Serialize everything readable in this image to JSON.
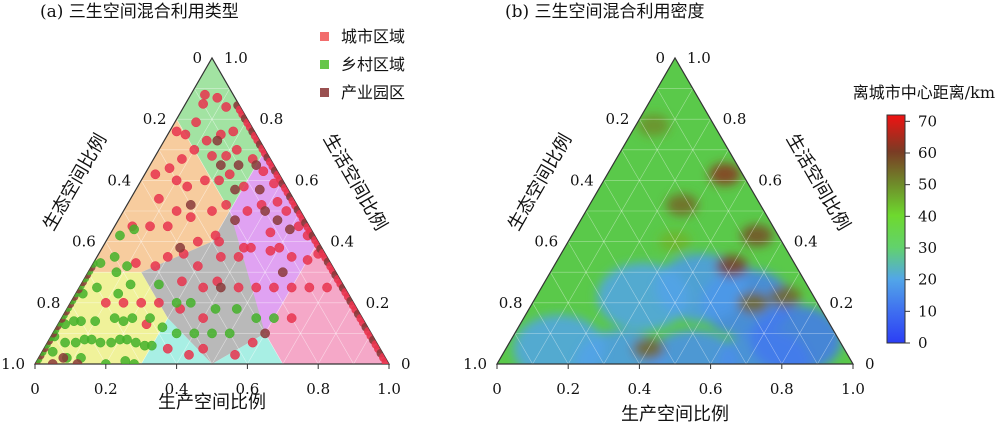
{
  "panel_a": {
    "title": "(a) 三生空间混合利用类型",
    "legend": [
      {
        "label": "城市区域",
        "color": "#f26d6d"
      },
      {
        "label": "乡村区域",
        "color": "#66c64a"
      },
      {
        "label": "产业园区",
        "color": "#9a5050"
      }
    ]
  },
  "panel_b": {
    "title": "(b) 三生空间混合利用密度",
    "colorbar_title": "离城市中心距离/km",
    "colorbar_ticks": [
      "0",
      "10",
      "20",
      "30",
      "40",
      "50",
      "60",
      "70"
    ],
    "colorbar_range": [
      0,
      72
    ]
  },
  "axes": {
    "bottom_label": "生产空间比例",
    "left_label": "生态空间比例",
    "right_label": "生活空间比例",
    "bottom_ticks": [
      "0",
      "0.2",
      "0.4",
      "0.6",
      "0.8",
      "1.0"
    ],
    "left_ticks": [
      "0",
      "0.2",
      "0.4",
      "0.6",
      "0.8",
      "1.0"
    ],
    "right_ticks": [
      "0",
      "0.2",
      "0.4",
      "0.6",
      "0.8",
      "1.0"
    ]
  },
  "chart_data": [
    {
      "type": "scatter",
      "title": "(a) 三生空间混合利用类型",
      "coordinate_system": "ternary (production, ecological, living)",
      "axes": {
        "bottom": "生产空间比例",
        "left": "生态空间比例",
        "right": "生活空间比例",
        "range": [
          0,
          1
        ]
      },
      "region_colors": {
        "living_dominant": "#f5a8c8",
        "ecology_dominant": "#f7cc9e",
        "production_dominant": "#a8efe4",
        "mixed_center": "#b9b9b9",
        "mixed_living_production": "#e0a2f2",
        "ecology_production": "#f0f29a",
        "ecology_living": "#a2e3a2"
      },
      "series": [
        {
          "name": "城市区域",
          "color": "#e8344e",
          "points": [
            [
              0.62,
              0.02
            ],
            [
              0.6,
              0.06
            ],
            [
              0.55,
              0.1
            ],
            [
              0.5,
              0.12
            ],
            [
              0.48,
              0.15
            ],
            [
              0.42,
              0.2
            ],
            [
              0.4,
              0.22
            ],
            [
              0.45,
              0.12
            ],
            [
              0.38,
              0.1
            ],
            [
              0.35,
              0.15
            ],
            [
              0.3,
              0.12
            ],
            [
              0.28,
              0.2
            ],
            [
              0.25,
              0.25
            ],
            [
              0.32,
              0.28
            ],
            [
              0.22,
              0.18
            ],
            [
              0.18,
              0.22
            ],
            [
              0.15,
              0.1
            ],
            [
              0.12,
              0.15
            ],
            [
              0.1,
              0.3
            ],
            [
              0.08,
              0.25
            ],
            [
              0.2,
              0.32
            ],
            [
              0.24,
              0.4
            ],
            [
              0.2,
              0.45
            ],
            [
              0.15,
              0.4
            ],
            [
              0.05,
              0.2
            ],
            [
              0.05,
              0.1
            ],
            [
              0.08,
              0.05
            ],
            [
              0.12,
              0.04
            ],
            [
              0.18,
              0.06
            ],
            [
              0.22,
              0.08
            ],
            [
              0.28,
              0.05
            ],
            [
              0.33,
              0.04
            ],
            [
              0.38,
              0.03
            ],
            [
              0.42,
              0.05
            ],
            [
              0.46,
              0.04
            ],
            [
              0.52,
              0.03
            ],
            [
              0.56,
              0.02
            ],
            [
              0.65,
              0.1
            ],
            [
              0.7,
              0.05
            ],
            [
              0.58,
              0.35
            ],
            [
              0.55,
              0.42
            ],
            [
              0.45,
              0.5
            ],
            [
              0.42,
              0.55
            ],
            [
              0.4,
              0.45
            ],
            [
              0.35,
              0.4
            ],
            [
              0.38,
              0.35
            ],
            [
              0.3,
              0.38
            ],
            [
              0.35,
              0.3
            ],
            [
              0.28,
              0.45
            ],
            [
              0.32,
              0.5
            ],
            [
              0.25,
              0.55
            ],
            [
              0.2,
              0.6
            ],
            [
              0.15,
              0.65
            ],
            [
              0.1,
              0.7
            ],
            [
              0.35,
              0.6
            ],
            [
              0.45,
              0.3
            ],
            [
              0.4,
              0.25
            ],
            [
              0.5,
              0.25
            ],
            [
              0.55,
              0.2
            ],
            [
              0.6,
              0.15
            ],
            [
              0.65,
              0.2
            ],
            [
              0.18,
              0.5
            ],
            [
              0.12,
              0.55
            ],
            [
              0.1,
              0.45
            ],
            [
              0.08,
              0.38
            ],
            [
              0.06,
              0.3
            ],
            [
              0.25,
              0.62
            ],
            [
              0.3,
              0.28
            ],
            [
              0.14,
              0.28
            ],
            [
              0.05,
              0.5
            ],
            [
              0.2,
              0.12
            ],
            [
              0.24,
              0.14
            ],
            [
              0.16,
              0.16
            ],
            [
              0.1,
              0.2
            ],
            [
              0.06,
              0.15
            ],
            [
              0.04,
              0.08
            ],
            [
              0.02,
              0.22
            ],
            [
              0.03,
              0.35
            ],
            [
              0.15,
              0.35
            ],
            [
              0.26,
              0.34
            ]
          ]
        },
        {
          "name": "乡村区域",
          "color": "#44b22a",
          "points": [
            [
              0.03,
              0.93
            ],
            [
              0.05,
              0.88
            ],
            [
              0.08,
              0.85
            ],
            [
              0.1,
              0.82
            ],
            [
              0.12,
              0.8
            ],
            [
              0.15,
              0.78
            ],
            [
              0.02,
              0.85
            ],
            [
              0.06,
              0.8
            ],
            [
              0.1,
              0.76
            ],
            [
              0.18,
              0.75
            ],
            [
              0.2,
              0.72
            ],
            [
              0.22,
              0.7
            ],
            [
              0.25,
              0.68
            ],
            [
              0.28,
              0.66
            ],
            [
              0.3,
              0.64
            ],
            [
              0.15,
              0.7
            ],
            [
              0.12,
              0.65
            ],
            [
              0.08,
              0.62
            ],
            [
              0.05,
              0.7
            ],
            [
              0.02,
              0.75
            ],
            [
              0.35,
              0.55
            ],
            [
              0.4,
              0.5
            ],
            [
              0.45,
              0.45
            ],
            [
              0.5,
              0.4
            ],
            [
              0.25,
              0.6
            ],
            [
              0.3,
              0.58
            ],
            [
              0.2,
              0.65
            ],
            [
              0.05,
              0.6
            ],
            [
              0.02,
              0.65
            ],
            [
              0.03,
              0.55
            ],
            [
              0.06,
              0.5
            ],
            [
              0.1,
              0.58
            ],
            [
              0.14,
              0.6
            ],
            [
              0.18,
              0.68
            ],
            [
              0.22,
              0.52
            ],
            [
              0.34,
              0.46
            ],
            [
              0.42,
              0.4
            ],
            [
              0.48,
              0.34
            ],
            [
              0.3,
              0.5
            ],
            [
              0.55,
              0.3
            ],
            [
              0.6,
              0.25
            ],
            [
              0.2,
              0.8
            ],
            [
              0.25,
              0.74
            ],
            [
              0.28,
              0.72
            ],
            [
              0.08,
              0.9
            ],
            [
              0.04,
              0.82
            ],
            [
              0.01,
              0.9
            ],
            [
              0.12,
              0.86
            ]
          ]
        },
        {
          "name": "产业园区",
          "color": "#8a3a3a",
          "points": [
            [
              0.3,
              0.05
            ],
            [
              0.35,
              0.08
            ],
            [
              0.4,
              0.1
            ],
            [
              0.25,
              0.1
            ],
            [
              0.2,
              0.15
            ],
            [
              0.45,
              0.08
            ],
            [
              0.5,
              0.06
            ],
            [
              0.15,
              0.12
            ],
            [
              0.28,
              0.15
            ],
            [
              0.33,
              0.2
            ],
            [
              0.12,
              0.88
            ],
            [
              0.05,
              0.95
            ],
            [
              0.07,
              0.91
            ],
            [
              0.6,
              0.3
            ],
            [
              0.4,
              0.35
            ],
            [
              0.22,
              0.4
            ],
            [
              0.18,
              0.3
            ],
            [
              0.55,
              0.15
            ]
          ]
        }
      ]
    },
    {
      "type": "heatmap",
      "title": "(b) 三生空间混合利用密度",
      "coordinate_system": "ternary (production, ecological, living)",
      "value_label": "离城市中心距离/km",
      "value_range": [
        0,
        72
      ],
      "base_value": 32,
      "hotspots": [
        {
          "production": 0.5,
          "ecological": 0.18,
          "value": 60
        },
        {
          "production": 0.33,
          "ecological": 0.05,
          "value": 62
        },
        {
          "production": 0.52,
          "ecological": 0.06,
          "value": 58
        },
        {
          "production": 0.7,
          "ecological": 0.08,
          "value": 55
        },
        {
          "production": 0.62,
          "ecological": 0.18,
          "value": 55
        },
        {
          "production": 0.26,
          "ecological": 0.22,
          "value": 55
        },
        {
          "production": 0.05,
          "ecological": 0.17,
          "value": 50
        },
        {
          "production": 0.4,
          "ecological": 0.55,
          "value": 55
        },
        {
          "production": 0.3,
          "ecological": 0.3,
          "value": 45
        }
      ],
      "coldspots": [
        {
          "production": 0.75,
          "ecological": 0.25,
          "value": 15
        },
        {
          "production": 0.6,
          "ecological": 0.2,
          "value": 14
        },
        {
          "production": 0.55,
          "ecological": 0.45,
          "value": 16
        },
        {
          "production": 0.35,
          "ecological": 0.65,
          "value": 18
        },
        {
          "production": 0.15,
          "ecological": 0.8,
          "value": 20
        },
        {
          "production": 0.8,
          "ecological": 0.12,
          "value": 12
        },
        {
          "production": 0.45,
          "ecological": 0.3,
          "value": 18
        },
        {
          "production": 0.3,
          "ecological": 0.48,
          "value": 20
        }
      ]
    }
  ]
}
